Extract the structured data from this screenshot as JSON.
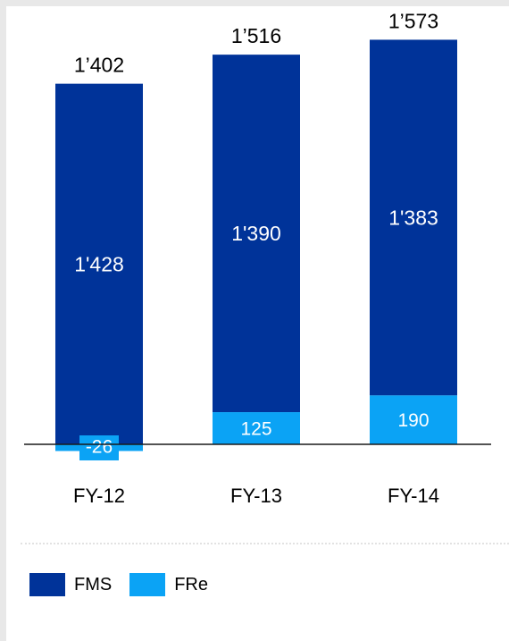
{
  "chart_data": {
    "type": "bar",
    "stacked": true,
    "categories": [
      "FY-12",
      "FY-13",
      "FY-14"
    ],
    "totals": [
      "1’402",
      "1’516",
      "1’573"
    ],
    "series": [
      {
        "name": "FMS",
        "values": [
          1428,
          1390,
          1383
        ],
        "labels": [
          "1'428",
          "1'390",
          "1'383"
        ],
        "color": "#003399"
      },
      {
        "name": "FRe",
        "values": [
          -26,
          125,
          190
        ],
        "labels": [
          "-26",
          "125",
          "190"
        ],
        "color": "#0ba3f5"
      }
    ],
    "grid": false,
    "legend_position": "bottom-left"
  }
}
